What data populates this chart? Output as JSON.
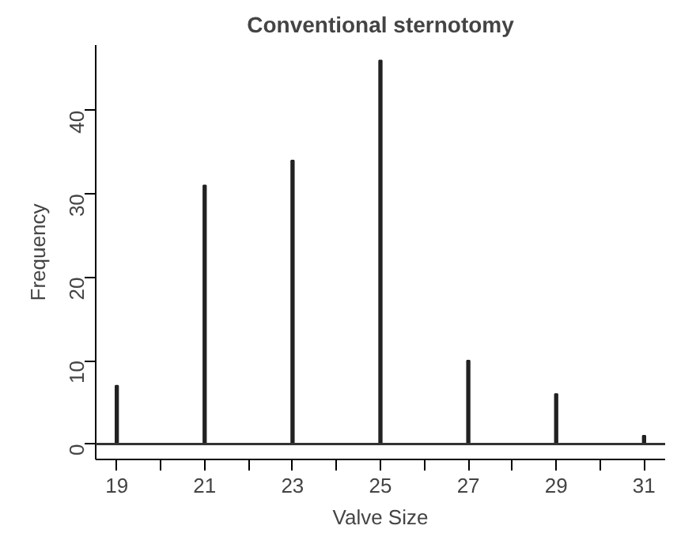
{
  "chart_data": {
    "type": "bar",
    "title": "Conventional sternotomy",
    "xlabel": "Valve Size",
    "ylabel": "Frequency",
    "x": [
      19,
      21,
      23,
      25,
      27,
      29,
      31
    ],
    "values": [
      7,
      31,
      34,
      46,
      10,
      6,
      1
    ],
    "color": "#222222",
    "xlim": [
      18.52,
      31.48
    ],
    "ylim": [
      -1.84,
      47.84
    ],
    "xticks": [
      19,
      {
        "value": 20,
        "label": null
      },
      21,
      {
        "value": 22,
        "label": null
      },
      23,
      {
        "value": 24,
        "label": null
      },
      25,
      {
        "value": 26,
        "label": null
      },
      27,
      {
        "value": 28,
        "label": null
      },
      29,
      {
        "value": 30,
        "label": null
      },
      31
    ],
    "yticks": [
      0,
      10,
      20,
      30,
      40
    ],
    "ref_lines": [
      {
        "axis": "y",
        "value": 0,
        "color": "#333333"
      }
    ]
  }
}
